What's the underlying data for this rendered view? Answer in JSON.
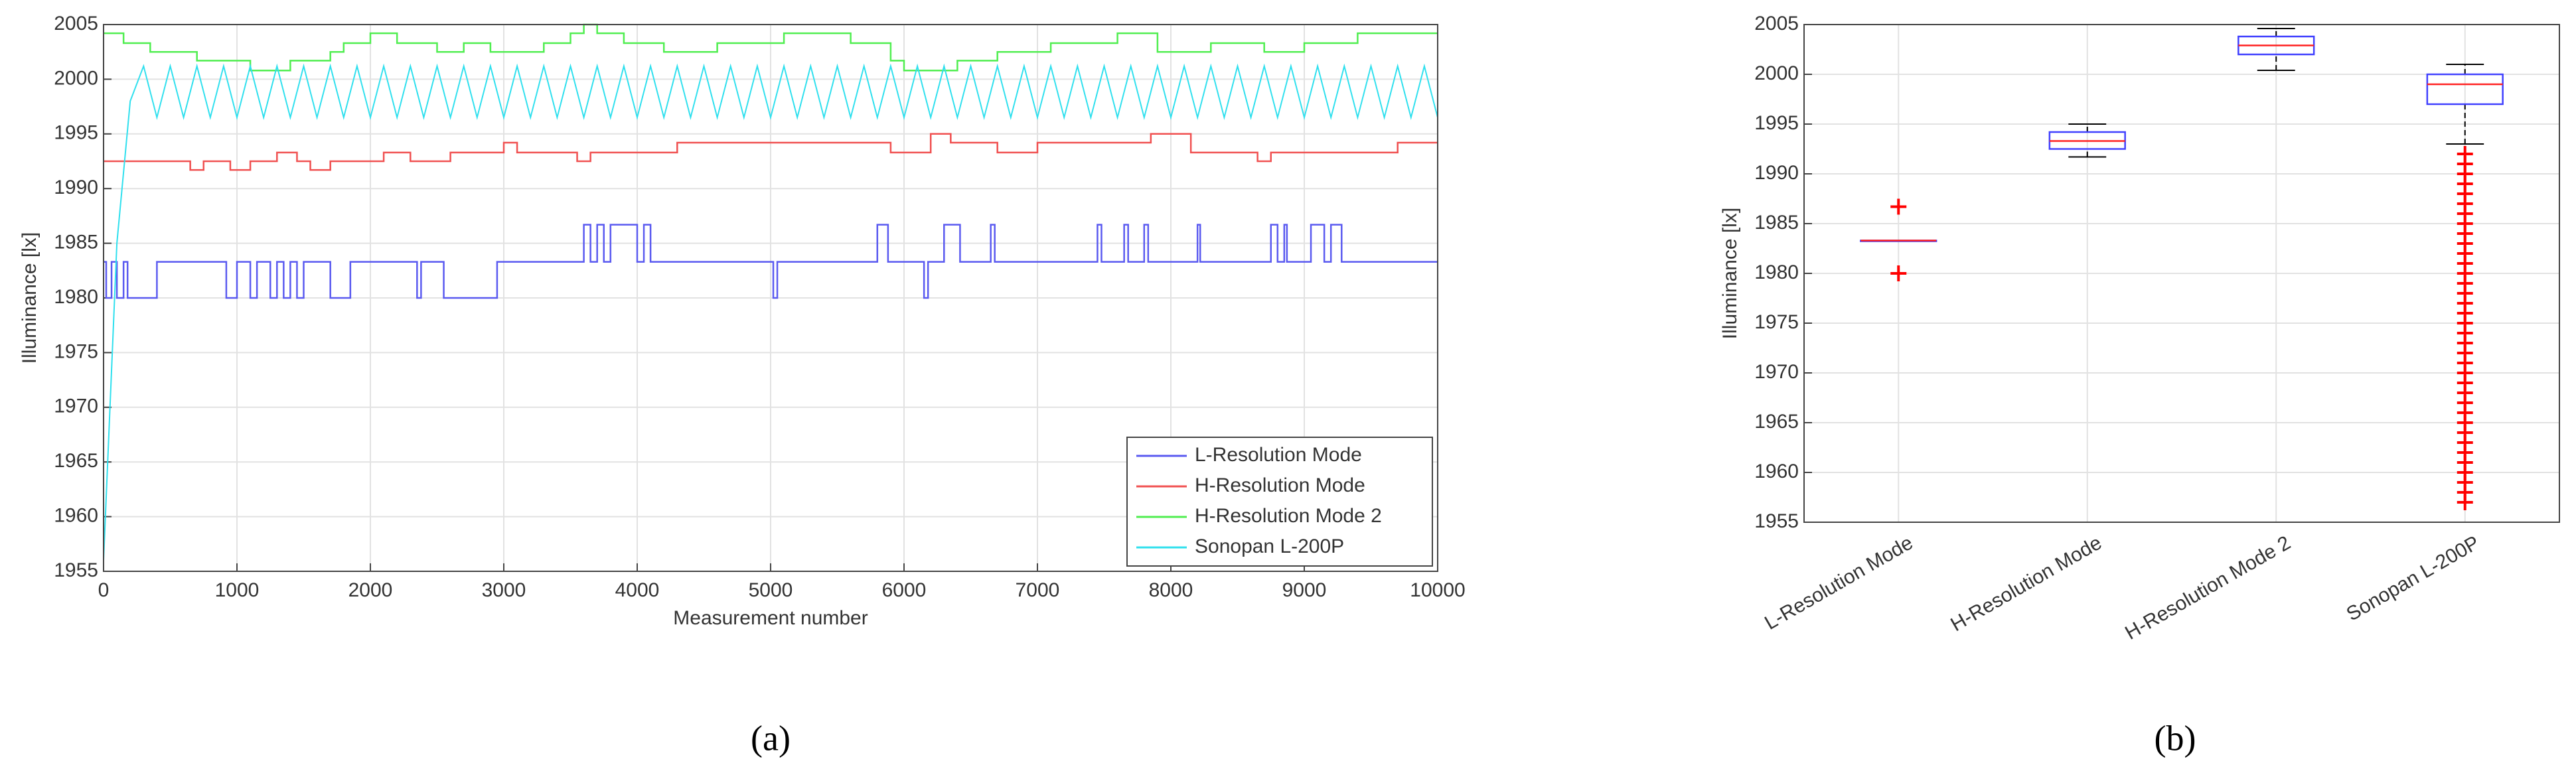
{
  "chart_data": [
    {
      "type": "line",
      "xlabel": "Measurement number",
      "ylabel": "Illuminance [lx]",
      "panel_label": "(a)",
      "xlim": [
        0,
        10000
      ],
      "xticks": [
        0,
        1000,
        2000,
        3000,
        4000,
        5000,
        6000,
        7000,
        8000,
        9000,
        10000
      ],
      "ylim": [
        1955,
        2005
      ],
      "yticks": [
        1955,
        1960,
        1965,
        1970,
        1975,
        1980,
        1985,
        1990,
        1995,
        2000,
        2005
      ],
      "grid": true,
      "legend": "lower right",
      "series": [
        {
          "name": "L-Resolution Mode",
          "color": "#5a5af0",
          "step": true,
          "x": [
            0,
            20,
            60,
            100,
            150,
            180,
            400,
            920,
            1000,
            1100,
            1150,
            1250,
            1300,
            1350,
            1400,
            1450,
            1500,
            1700,
            1850,
            2350,
            2380,
            2550,
            2950,
            3600,
            3650,
            3700,
            3750,
            3800,
            4000,
            4050,
            4100,
            5020,
            5050,
            5800,
            5880,
            6150,
            6180,
            6300,
            6420,
            6650,
            6680,
            7450,
            7480,
            7650,
            7680,
            7800,
            7830,
            8200,
            8220,
            8750,
            8800,
            8850,
            8870,
            9050,
            9150,
            9200,
            9280,
            10000
          ],
          "values": [
            1983.3,
            1980,
            1983.3,
            1980,
            1983.3,
            1980,
            1983.3,
            1980,
            1983.3,
            1980,
            1983.3,
            1980,
            1983.3,
            1980,
            1983.3,
            1980,
            1983.3,
            1980,
            1983.3,
            1980,
            1983.3,
            1980,
            1983.3,
            1986.7,
            1983.3,
            1986.7,
            1983.3,
            1986.7,
            1983.3,
            1986.7,
            1983.3,
            1980,
            1983.3,
            1986.7,
            1983.3,
            1980,
            1983.3,
            1986.7,
            1983.3,
            1986.7,
            1983.3,
            1986.7,
            1983.3,
            1986.7,
            1983.3,
            1986.7,
            1983.3,
            1986.7,
            1983.3,
            1986.7,
            1983.3,
            1986.7,
            1983.3,
            1986.7,
            1983.3,
            1986.7,
            1983.3,
            1983.3
          ]
        },
        {
          "name": "H-Resolution Mode",
          "color": "#f05050",
          "step": true,
          "x": [
            0,
            650,
            750,
            950,
            1100,
            1300,
            1450,
            1550,
            1700,
            2100,
            2300,
            2600,
            3000,
            3100,
            3550,
            3650,
            4300,
            5900,
            6200,
            6350,
            6700,
            7000,
            7850,
            8150,
            8650,
            8750,
            9700,
            10000
          ],
          "values": [
            1992.5,
            1991.7,
            1992.5,
            1991.7,
            1992.5,
            1993.3,
            1992.5,
            1991.7,
            1992.5,
            1993.3,
            1992.5,
            1993.3,
            1994.2,
            1993.3,
            1992.5,
            1993.3,
            1994.2,
            1993.3,
            1995,
            1994.2,
            1993.3,
            1994.2,
            1995,
            1993.3,
            1992.5,
            1993.3,
            1994.2,
            1994.2
          ]
        },
        {
          "name": "H-Resolution Mode 2",
          "color": "#50ee50",
          "step": true,
          "x": [
            0,
            150,
            350,
            700,
            1100,
            1400,
            1700,
            1800,
            2000,
            2200,
            2500,
            2700,
            2900,
            3300,
            3500,
            3600,
            3700,
            3900,
            4200,
            4600,
            5100,
            5600,
            5900,
            6000,
            6400,
            6700,
            7100,
            7600,
            7900,
            8300,
            8700,
            9000,
            9400,
            10000
          ],
          "values": [
            2004.2,
            2003.3,
            2002.5,
            2001.7,
            2000.8,
            2001.7,
            2002.5,
            2003.3,
            2004.2,
            2003.3,
            2002.5,
            2003.3,
            2002.5,
            2003.3,
            2004.2,
            2005,
            2004.2,
            2003.3,
            2002.5,
            2003.3,
            2004.2,
            2003.3,
            2001.7,
            2000.8,
            2001.7,
            2002.5,
            2003.3,
            2004.2,
            2002.5,
            2003.3,
            2002.5,
            2003.3,
            2004.2,
            2004.2
          ]
        },
        {
          "name": "Sonopan L-200P",
          "color": "#30e0ee",
          "step": false,
          "x": [
            0,
            100,
            200,
            300,
            400,
            500,
            600,
            700,
            800,
            900,
            1000,
            1100,
            1200,
            1300,
            1400,
            1500,
            1600,
            1700,
            1800,
            1900,
            2000,
            2100,
            2200,
            2300,
            2400,
            2500,
            2600,
            2700,
            2800,
            2900,
            3000,
            3100,
            3200,
            3300,
            3400,
            3500,
            3600,
            3700,
            3800,
            3900,
            4000,
            4100,
            4200,
            4300,
            4400,
            4500,
            4600,
            4700,
            4800,
            4900,
            5000,
            5100,
            5200,
            5300,
            5400,
            5500,
            5600,
            5700,
            5800,
            5900,
            6000,
            6100,
            6200,
            6300,
            6400,
            6500,
            6600,
            6700,
            6800,
            6900,
            7000,
            7100,
            7200,
            7300,
            7400,
            7500,
            7600,
            7700,
            7800,
            7900,
            8000,
            8100,
            8200,
            8300,
            8400,
            8500,
            8600,
            8700,
            8800,
            8900,
            9000,
            9100,
            9200,
            9300,
            9400,
            9500,
            9600,
            9700,
            9800,
            9900,
            10000
          ],
          "values": [
            1956,
            1985,
            1998,
            2001.2,
            1996.5,
            2001.2,
            1996.5,
            2001.2,
            1996.5,
            2001.2,
            1996.5,
            2001.2,
            1996.5,
            2001.2,
            1996.5,
            2001.2,
            1996.5,
            2001.2,
            1996.5,
            2001.2,
            1996.5,
            2001.2,
            1996.5,
            2001.2,
            1996.5,
            2001.2,
            1996.5,
            2001.2,
            1996.5,
            2001.2,
            1996.5,
            2001.2,
            1996.5,
            2001.2,
            1996.5,
            2001.2,
            1996.5,
            2001.2,
            1996.5,
            2001.2,
            1996.5,
            2001.2,
            1996.5,
            2001.2,
            1996.5,
            2001.2,
            1996.5,
            2001.2,
            1996.5,
            2001.2,
            1996.5,
            2001.2,
            1996.5,
            2001.2,
            1996.5,
            2001.2,
            1996.5,
            2001.2,
            1996.5,
            2001.2,
            1996.5,
            2001.2,
            1996.5,
            2001.2,
            1996.5,
            2001.2,
            1996.5,
            2001.2,
            1996.5,
            2001.2,
            1996.5,
            2001.2,
            1996.5,
            2001.2,
            1996.5,
            2001.2,
            1996.5,
            2001.2,
            1996.5,
            2001.2,
            1996.5,
            2001.2,
            1996.5,
            2001.2,
            1996.5,
            2001.2,
            1996.5,
            2001.2,
            1996.5,
            2001.2,
            1996.5,
            2001.2,
            1996.5,
            2001.2,
            1996.5,
            2001.2,
            1996.5,
            2001.2,
            1996.5,
            2001.2,
            1996.5
          ]
        }
      ]
    },
    {
      "type": "box",
      "ylabel": "Illuminance [lx]",
      "panel_label": "(b)",
      "ylim": [
        1955,
        2005
      ],
      "yticks": [
        1955,
        1960,
        1965,
        1970,
        1975,
        1980,
        1985,
        1990,
        1995,
        2000,
        2005
      ],
      "grid": true,
      "box_color": "#4040ff",
      "median_color": "#ff2020",
      "outlier_color": "#ff0000",
      "categories": [
        "L-Resolution Mode",
        "H-Resolution Mode",
        "H-Resolution Mode 2",
        "Sonopan L-200P"
      ],
      "boxes": [
        {
          "whisker_low": 1983.3,
          "q1": 1983.3,
          "median": 1983.3,
          "q3": 1983.3,
          "whisker_high": 1983.3,
          "outliers": [
            1980,
            1986.7
          ]
        },
        {
          "whisker_low": 1991.7,
          "q1": 1992.5,
          "median": 1993.3,
          "q3": 1994.2,
          "whisker_high": 1995,
          "outliers": []
        },
        {
          "whisker_low": 2000.4,
          "q1": 2002,
          "median": 2002.9,
          "q3": 2003.8,
          "whisker_high": 2004.6,
          "outliers": []
        },
        {
          "whisker_low": 1993,
          "q1": 1997,
          "median": 1999,
          "q3": 2000,
          "whisker_high": 2001,
          "outliers": [
            1957,
            1958,
            1959,
            1960,
            1961,
            1962,
            1963,
            1964,
            1965,
            1966,
            1967,
            1968,
            1969,
            1970,
            1971,
            1972,
            1973,
            1974,
            1975,
            1976,
            1977,
            1978,
            1979,
            1980,
            1981,
            1982,
            1983,
            1984,
            1985,
            1986,
            1987,
            1988,
            1989,
            1990,
            1991,
            1992
          ]
        }
      ]
    }
  ]
}
